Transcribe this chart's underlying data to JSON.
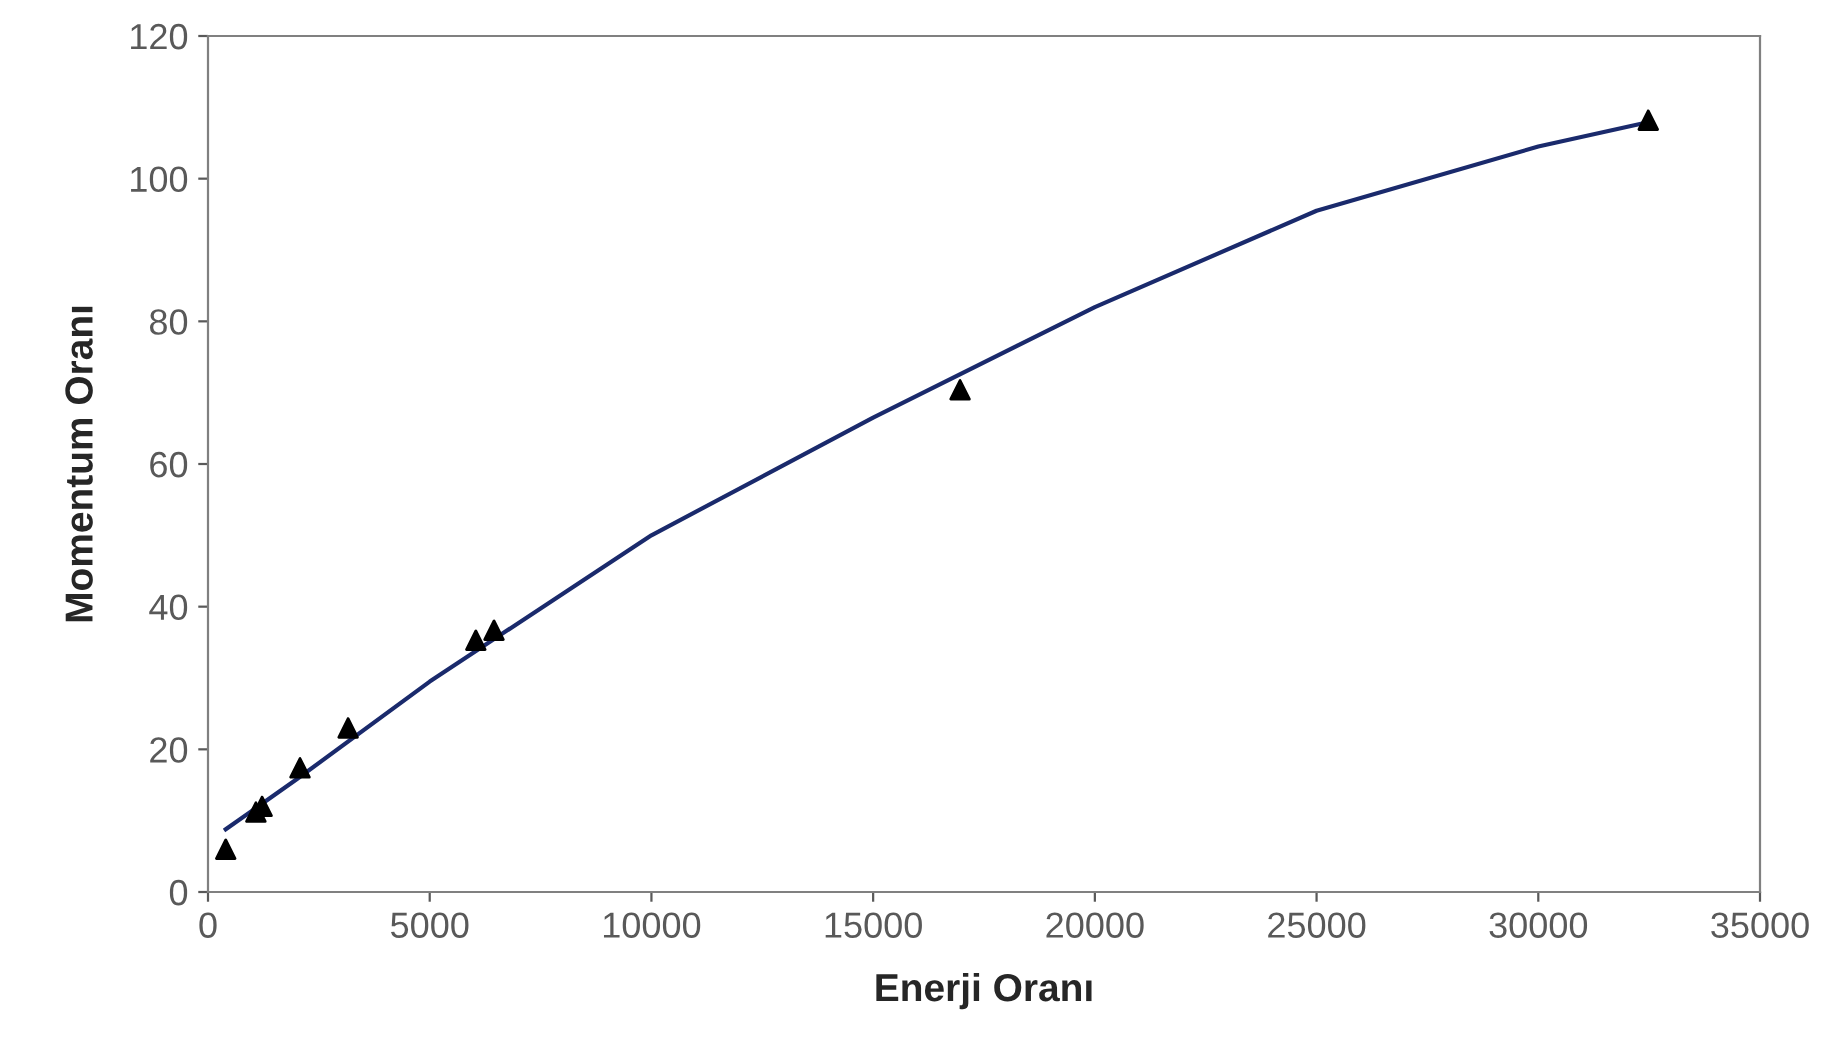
{
  "chart_data": {
    "type": "scatter",
    "xlabel": "Enerji Oranı",
    "ylabel": "Momentum Oranı",
    "xlim": [
      0,
      35000
    ],
    "xticks": [
      0,
      5000,
      10000,
      15000,
      20000,
      25000,
      30000,
      35000
    ],
    "ylim": [
      0,
      120
    ],
    "yticks": [
      0,
      20,
      40,
      60,
      80,
      100,
      120
    ],
    "grid": false,
    "legend": false,
    "series": [
      {
        "color": "#000000",
        "marker": "triangle",
        "x": [
          400,
          1080,
          1220,
          2075,
          3160,
          6040,
          6450,
          16960,
          32480
        ],
        "values": [
          6,
          11.2,
          12,
          17.4,
          23,
          35.3,
          36.7,
          70.4,
          108.2
        ]
      },
      {
        "type": "line",
        "color": "#1a2a6c",
        "marker": "none",
        "line_style": "solid",
        "x": [
          400,
          2000,
          5000,
          10000,
          15000,
          20000,
          25000,
          30000,
          32400
        ],
        "values": [
          8.8,
          15.8,
          29.5,
          50,
          66.5,
          82,
          95.5,
          104.5,
          107.8
        ]
      }
    ]
  }
}
